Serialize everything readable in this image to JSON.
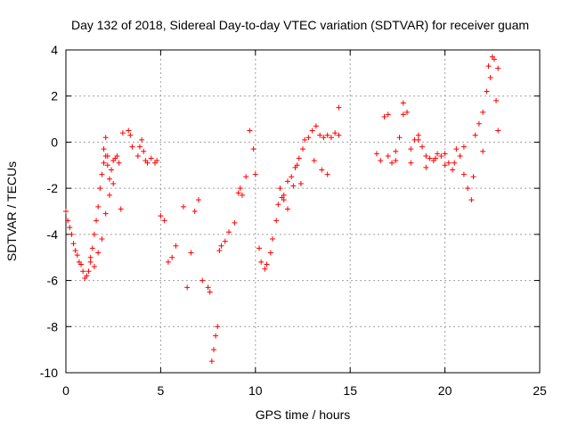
{
  "chart_data": {
    "type": "scatter",
    "title": "Day 132 of 2018, Sidereal Day-to-day VTEC variation (SDTVAR) for receiver guam",
    "xlabel": "GPS time / hours",
    "ylabel": "SDTVAR / TECUs",
    "xlim": [
      0,
      25
    ],
    "ylim": [
      -10,
      4
    ],
    "xticks": [
      "0",
      "5",
      "10",
      "15",
      "20",
      "25"
    ],
    "yticks": [
      "4",
      "2",
      "0",
      "-2",
      "-4",
      "-6",
      "-8",
      "-10"
    ],
    "grid": true,
    "marker": "plus",
    "color": "#ff0000",
    "series": [
      {
        "name": "guam",
        "x": [
          0.0,
          0.1,
          0.2,
          0.3,
          0.4,
          0.5,
          0.6,
          0.7,
          0.8,
          0.9,
          1.0,
          1.1,
          1.2,
          1.3,
          1.4,
          1.5,
          1.6,
          1.7,
          1.8,
          1.9,
          2.0,
          2.1,
          2.2,
          2.3,
          2.4,
          2.5,
          2.6,
          2.7,
          2.8,
          2.9,
          1.3,
          1.5,
          1.7,
          1.9,
          2.1,
          2.3,
          2.5,
          2.1,
          2.0,
          2.2,
          3.0,
          3.3,
          3.4,
          3.5,
          3.8,
          3.9,
          4.0,
          4.1,
          4.2,
          4.3,
          4.5,
          4.7,
          4.8,
          5.0,
          5.2,
          5.4,
          5.6,
          5.8,
          6.2,
          6.4,
          6.6,
          6.8,
          7.0,
          7.2,
          7.5,
          7.6,
          7.7,
          7.8,
          7.9,
          8.0,
          8.1,
          8.2,
          8.4,
          8.6,
          8.9,
          9.1,
          9.2,
          9.3,
          9.5,
          9.7,
          9.9,
          10.0,
          10.2,
          10.3,
          10.5,
          10.6,
          10.8,
          10.9,
          11.1,
          11.2,
          11.4,
          11.5,
          11.7,
          11.9,
          12.1,
          12.3,
          12.5,
          12.6,
          12.8,
          13.0,
          13.2,
          13.4,
          13.6,
          13.8,
          14.0,
          14.2,
          14.4,
          11.3,
          11.5,
          11.7,
          12.0,
          12.2,
          12.4,
          13.1,
          13.5,
          13.8,
          14.4,
          16.4,
          16.6,
          16.8,
          17.0,
          17.2,
          17.4,
          17.6,
          17.8,
          18.0,
          18.2,
          18.4,
          18.6,
          18.8,
          19.0,
          19.2,
          19.4,
          19.6,
          19.8,
          20.0,
          20.2,
          20.4,
          20.6,
          20.8,
          21.0,
          21.2,
          21.4,
          21.6,
          21.8,
          22.0,
          22.2,
          22.4,
          22.6,
          22.8,
          17.0,
          17.4,
          17.8,
          18.2,
          18.6,
          19.0,
          19.5,
          20.0,
          20.5,
          21.0,
          21.5,
          22.0,
          22.3,
          22.5,
          22.7,
          22.8
        ],
        "y": [
          -3.0,
          -3.4,
          -3.7,
          -4.0,
          -4.4,
          -4.7,
          -4.9,
          -5.2,
          -5.3,
          -5.6,
          -5.9,
          -5.8,
          -5.6,
          -5.2,
          -4.6,
          -4.0,
          -3.4,
          -2.8,
          -2.0,
          -1.4,
          -0.9,
          -0.6,
          -1.0,
          -1.6,
          -1.2,
          -0.8,
          -0.7,
          -0.6,
          -0.9,
          -2.9,
          -5.0,
          -5.4,
          -4.8,
          -4.2,
          -3.1,
          -2.3,
          -1.8,
          0.2,
          -0.3,
          -0.6,
          0.4,
          0.5,
          0.3,
          -0.2,
          -0.6,
          -0.2,
          0.1,
          -0.4,
          -0.8,
          -0.9,
          -0.7,
          -0.9,
          -0.8,
          -3.2,
          -3.4,
          -5.2,
          -5.0,
          -4.5,
          -2.8,
          -6.3,
          -4.8,
          -3.0,
          -2.5,
          -6.0,
          -6.3,
          -6.5,
          -9.5,
          -9.0,
          -8.4,
          -8.0,
          -4.7,
          -4.5,
          -4.3,
          -3.9,
          -3.5,
          -2.2,
          -2.0,
          -2.3,
          -1.5,
          0.5,
          -0.3,
          -1.4,
          -4.6,
          -5.2,
          -5.5,
          -5.3,
          -4.8,
          -4.2,
          -3.4,
          -2.7,
          -2.4,
          -2.3,
          -1.7,
          -1.5,
          -1.1,
          -0.7,
          -0.3,
          0.1,
          0.2,
          0.5,
          0.7,
          0.3,
          0.2,
          0.3,
          0.2,
          0.4,
          1.5,
          -2.0,
          -2.5,
          -2.9,
          -1.9,
          -1.0,
          -1.8,
          -0.8,
          -1.2,
          -1.4,
          0.3,
          -0.5,
          -0.8,
          1.1,
          1.2,
          -0.9,
          -0.4,
          0.2,
          1.7,
          1.3,
          -0.3,
          0.1,
          0.3,
          -0.2,
          -0.6,
          -0.7,
          -0.8,
          -0.5,
          -0.6,
          -1.0,
          -0.9,
          -1.2,
          -0.3,
          -0.6,
          -1.4,
          -2.0,
          -2.5,
          0.3,
          0.8,
          1.3,
          2.2,
          2.8,
          3.6,
          3.2,
          -0.6,
          -0.8,
          1.2,
          -0.9,
          0.1,
          -1.1,
          -0.7,
          -0.5,
          -0.9,
          -0.2,
          -1.5,
          -0.4,
          3.3,
          3.7,
          1.8,
          0.5
        ]
      }
    ]
  }
}
